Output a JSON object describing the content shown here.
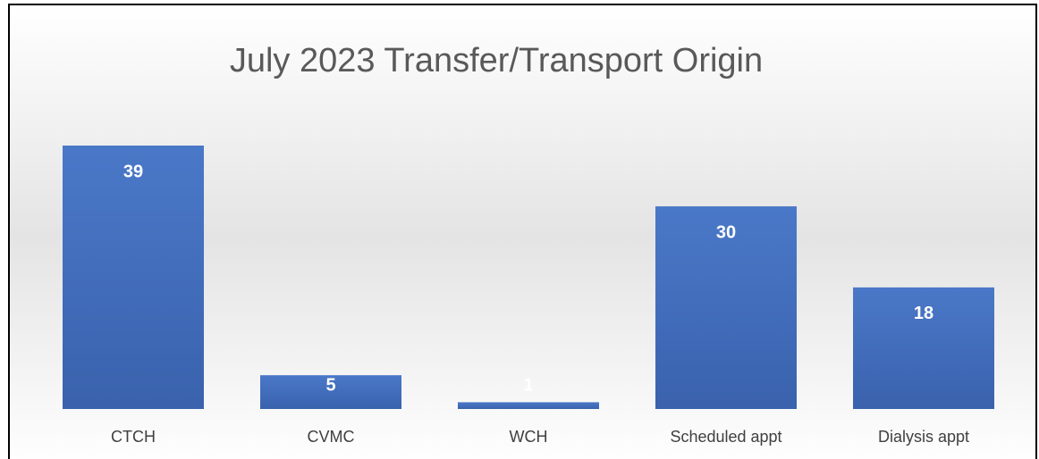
{
  "chart_data": {
    "type": "bar",
    "title": "July 2023 Transfer/Transport Origin",
    "categories": [
      "CTCH",
      "CVMC",
      "WCH",
      "Scheduled appt",
      "Dialysis appt"
    ],
    "values": [
      39,
      5,
      1,
      30,
      18
    ],
    "color": "#4472c4"
  }
}
